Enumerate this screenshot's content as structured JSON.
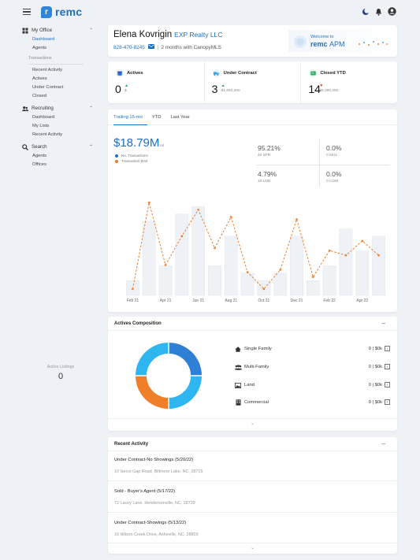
{
  "app": {
    "brand": "remc"
  },
  "sidebar": {
    "my_office": {
      "label": "My Office",
      "items": [
        "Dashboard",
        "Agents"
      ]
    },
    "transactions_label": "Transactions",
    "transactions_items": [
      "Recent Activity",
      "Actives",
      "Under Contract",
      "Closed"
    ],
    "recruiting": {
      "label": "Recruiting",
      "items": [
        "Dashboard",
        "My Lists",
        "Recent Activity"
      ]
    },
    "search": {
      "label": "Search",
      "items": [
        "Agents",
        "Offices"
      ]
    }
  },
  "profile": {
    "name": "Elena Kovrigin",
    "company": "EXP Realty LLC",
    "phone": "828-470-8245",
    "tenure": "2 months with CanopyMLS",
    "welcome_to": "Welcome to",
    "welcome_brand": "remc",
    "welcome_product": "APM"
  },
  "stats": [
    {
      "label": "Actives",
      "value": "0",
      "sub": "$"
    },
    {
      "label": "Under Contract",
      "value": "3",
      "sub": "$1,693,300"
    },
    {
      "label": "Closed YTD",
      "value": "14",
      "sub": "$5,280,292"
    }
  ],
  "performance": {
    "tabs": [
      "Trailing 15-mo",
      "YTD",
      "Last Year"
    ],
    "total": "$18.79M",
    "total_suffix": "Vol",
    "legend": [
      "No. Transactions",
      "Transaction $Vol"
    ],
    "kpis": [
      {
        "value": "95.21%",
        "label": "40 SFR"
      },
      {
        "value": "0.0%",
        "label": "0 MUL"
      },
      {
        "value": "4.79%",
        "label": "10 LND"
      },
      {
        "value": "0.0%",
        "label": "0 COM"
      }
    ]
  },
  "chart_data": {
    "type": "bar",
    "x": [
      "Feb 21",
      "Mar 21",
      "Apr 21",
      "May 21",
      "Jun 21",
      "Jul 21",
      "Aug 21",
      "Sep 21",
      "Oct 21",
      "Nov 21",
      "Dec 21",
      "Jan 22",
      "Feb 22",
      "Mar 22",
      "Apr 22",
      "May 22"
    ],
    "tick_labels": [
      "Feb 21",
      "Apr 21",
      "Jun 21",
      "Aug 21",
      "Oct 21",
      "Dec 21",
      "Feb 22",
      "Apr 22"
    ],
    "series": [
      {
        "name": "No. Transactions",
        "type": "bar",
        "values": [
          2,
          10,
          4,
          11,
          12,
          4,
          8,
          3,
          2,
          3,
          8,
          2,
          4,
          9,
          6,
          8
        ]
      },
      {
        "name": "Transaction $Vol",
        "type": "line",
        "values": [
          0.1,
          1.9,
          0.6,
          1.2,
          1.75,
          0.95,
          1.6,
          0.45,
          0.1,
          0.5,
          1.55,
          0.35,
          0.9,
          0.8,
          1.1,
          0.8
        ]
      }
    ],
    "grid": false,
    "colors": {
      "bar": "#eef1f6",
      "line": "#ef7d27"
    }
  },
  "composition": {
    "title": "Actives Composition",
    "center_label": "Active Listings",
    "center_value": "0",
    "types": [
      {
        "icon": "house-icon",
        "label": "Single Family",
        "value": "0 | $0k"
      },
      {
        "icon": "users-icon",
        "label": "Multi-Family",
        "value": "0 | $0k"
      },
      {
        "icon": "land-icon",
        "label": "Land",
        "value": "0 | $0k"
      },
      {
        "icon": "building-icon",
        "label": "Commercial",
        "value": "0 | $0k"
      }
    ],
    "colors": {
      "blue": "#2f7fd6",
      "light_blue": "#2fb5ef",
      "orange": "#f07f2a"
    }
  },
  "recent": {
    "title": "Recent Activity",
    "items": [
      {
        "title": "Under Contract-No Showings (5/20/22)",
        "address": "10 Isecoi Gap Road, Biltmore Lake, NC, 28715"
      },
      {
        "title": "Sold - Buyer's Agent (5/17/22)",
        "address": "72 Lacey Lane, Hendersonville, NC, 28739"
      },
      {
        "title": "Under Contract-Showings (5/13/22)",
        "address": "16 Wilson Creek Drive, Asheville, NC, 28803"
      }
    ]
  }
}
